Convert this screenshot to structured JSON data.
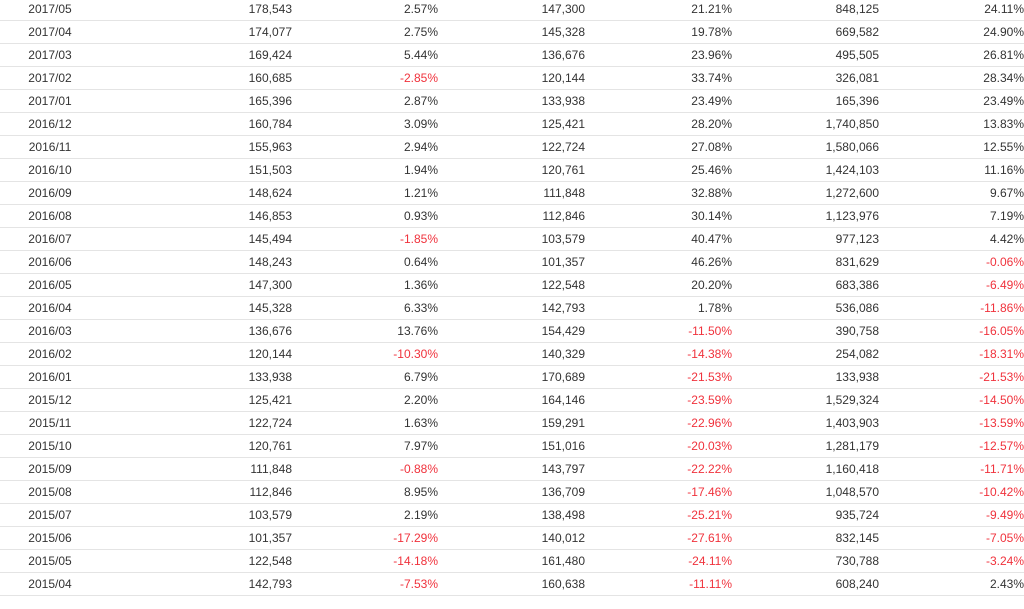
{
  "table": {
    "rows": [
      [
        "2017/05",
        "178,543",
        "2.57%",
        "147,300",
        "21.21%",
        "848,125",
        "24.11%"
      ],
      [
        "2017/04",
        "174,077",
        "2.75%",
        "145,328",
        "19.78%",
        "669,582",
        "24.90%"
      ],
      [
        "2017/03",
        "169,424",
        "5.44%",
        "136,676",
        "23.96%",
        "495,505",
        "26.81%"
      ],
      [
        "2017/02",
        "160,685",
        "-2.85%",
        "120,144",
        "33.74%",
        "326,081",
        "28.34%"
      ],
      [
        "2017/01",
        "165,396",
        "2.87%",
        "133,938",
        "23.49%",
        "165,396",
        "23.49%"
      ],
      [
        "2016/12",
        "160,784",
        "3.09%",
        "125,421",
        "28.20%",
        "1,740,850",
        "13.83%"
      ],
      [
        "2016/11",
        "155,963",
        "2.94%",
        "122,724",
        "27.08%",
        "1,580,066",
        "12.55%"
      ],
      [
        "2016/10",
        "151,503",
        "1.94%",
        "120,761",
        "25.46%",
        "1,424,103",
        "11.16%"
      ],
      [
        "2016/09",
        "148,624",
        "1.21%",
        "111,848",
        "32.88%",
        "1,272,600",
        "9.67%"
      ],
      [
        "2016/08",
        "146,853",
        "0.93%",
        "112,846",
        "30.14%",
        "1,123,976",
        "7.19%"
      ],
      [
        "2016/07",
        "145,494",
        "-1.85%",
        "103,579",
        "40.47%",
        "977,123",
        "4.42%"
      ],
      [
        "2016/06",
        "148,243",
        "0.64%",
        "101,357",
        "46.26%",
        "831,629",
        "-0.06%"
      ],
      [
        "2016/05",
        "147,300",
        "1.36%",
        "122,548",
        "20.20%",
        "683,386",
        "-6.49%"
      ],
      [
        "2016/04",
        "145,328",
        "6.33%",
        "142,793",
        "1.78%",
        "536,086",
        "-11.86%"
      ],
      [
        "2016/03",
        "136,676",
        "13.76%",
        "154,429",
        "-11.50%",
        "390,758",
        "-16.05%"
      ],
      [
        "2016/02",
        "120,144",
        "-10.30%",
        "140,329",
        "-14.38%",
        "254,082",
        "-18.31%"
      ],
      [
        "2016/01",
        "133,938",
        "6.79%",
        "170,689",
        "-21.53%",
        "133,938",
        "-21.53%"
      ],
      [
        "2015/12",
        "125,421",
        "2.20%",
        "164,146",
        "-23.59%",
        "1,529,324",
        "-14.50%"
      ],
      [
        "2015/11",
        "122,724",
        "1.63%",
        "159,291",
        "-22.96%",
        "1,403,903",
        "-13.59%"
      ],
      [
        "2015/10",
        "120,761",
        "7.97%",
        "151,016",
        "-20.03%",
        "1,281,179",
        "-12.57%"
      ],
      [
        "2015/09",
        "111,848",
        "-0.88%",
        "143,797",
        "-22.22%",
        "1,160,418",
        "-11.71%"
      ],
      [
        "2015/08",
        "112,846",
        "8.95%",
        "136,709",
        "-17.46%",
        "1,048,570",
        "-10.42%"
      ],
      [
        "2015/07",
        "103,579",
        "2.19%",
        "138,498",
        "-25.21%",
        "935,724",
        "-9.49%"
      ],
      [
        "2015/06",
        "101,357",
        "-17.29%",
        "140,012",
        "-27.61%",
        "832,145",
        "-7.05%"
      ],
      [
        "2015/05",
        "122,548",
        "-14.18%",
        "161,480",
        "-24.11%",
        "730,788",
        "-3.24%"
      ],
      [
        "2015/04",
        "142,793",
        "-7.53%",
        "160,638",
        "-11.11%",
        "608,240",
        "2.43%"
      ]
    ]
  },
  "colors": {
    "text": "#333333",
    "negative": "#f0323c",
    "row_border": "#e4e4e4"
  }
}
